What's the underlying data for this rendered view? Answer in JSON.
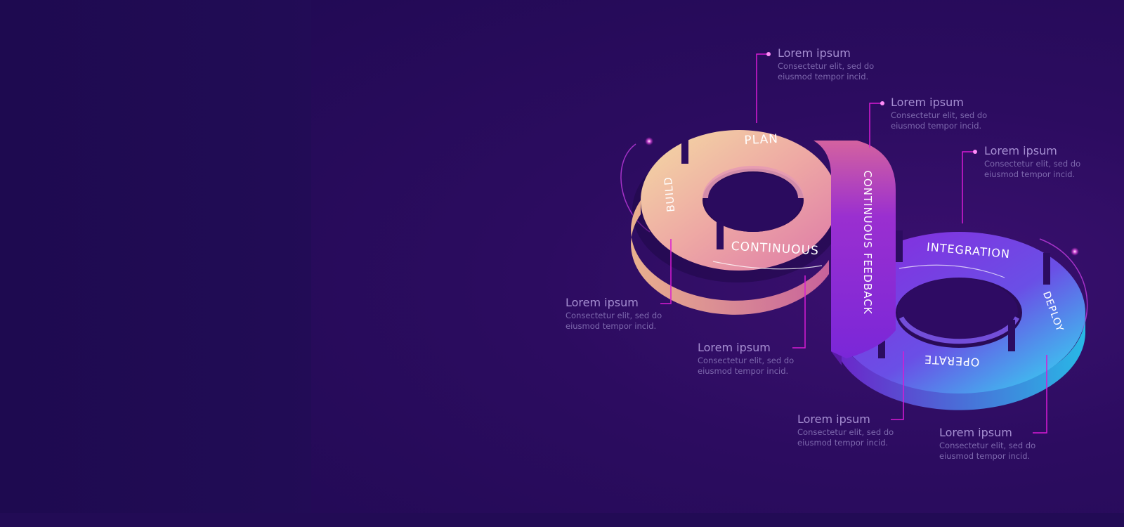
{
  "segments": {
    "plan": "PLAN",
    "build": "BUILD",
    "continuous": "CONTINUOUS",
    "continuous_feedback": "CONTINUOUS FEEDBACK",
    "integration": "INTEGRATION",
    "deploy": "DEPLOY",
    "operate": "OPERATE"
  },
  "callouts": [
    {
      "title": "Lorem ipsum",
      "line1": "Consectetur elit, sed do",
      "line2": "eiusmod tempor incid."
    },
    {
      "title": "Lorem ipsum",
      "line1": "Consectetur elit, sed do",
      "line2": "eiusmod tempor incid."
    },
    {
      "title": "Lorem ipsum",
      "line1": "Consectetur elit, sed do",
      "line2": "eiusmod tempor incid."
    },
    {
      "title": "Lorem ipsum",
      "line1": "Consectetur elit, sed do",
      "line2": "eiusmod tempor incid."
    },
    {
      "title": "Lorem ipsum",
      "line1": "Consectetur elit, sed do",
      "line2": "eiusmod tempor incid."
    },
    {
      "title": "Lorem ipsum",
      "line1": "Consectetur elit, sed do",
      "line2": "eiusmod tempor incid."
    },
    {
      "title": "Lorem ipsum",
      "line1": "Consectetur elit, sed do",
      "line2": "eiusmod tempor incid."
    }
  ],
  "colors": {
    "background": "#1e0a50",
    "warm_start": "#f4d7a0",
    "warm_end": "#e47aa6",
    "cool_start": "#8a2be2",
    "cool_end": "#2fe3f0",
    "connector": "#d81bd4"
  }
}
